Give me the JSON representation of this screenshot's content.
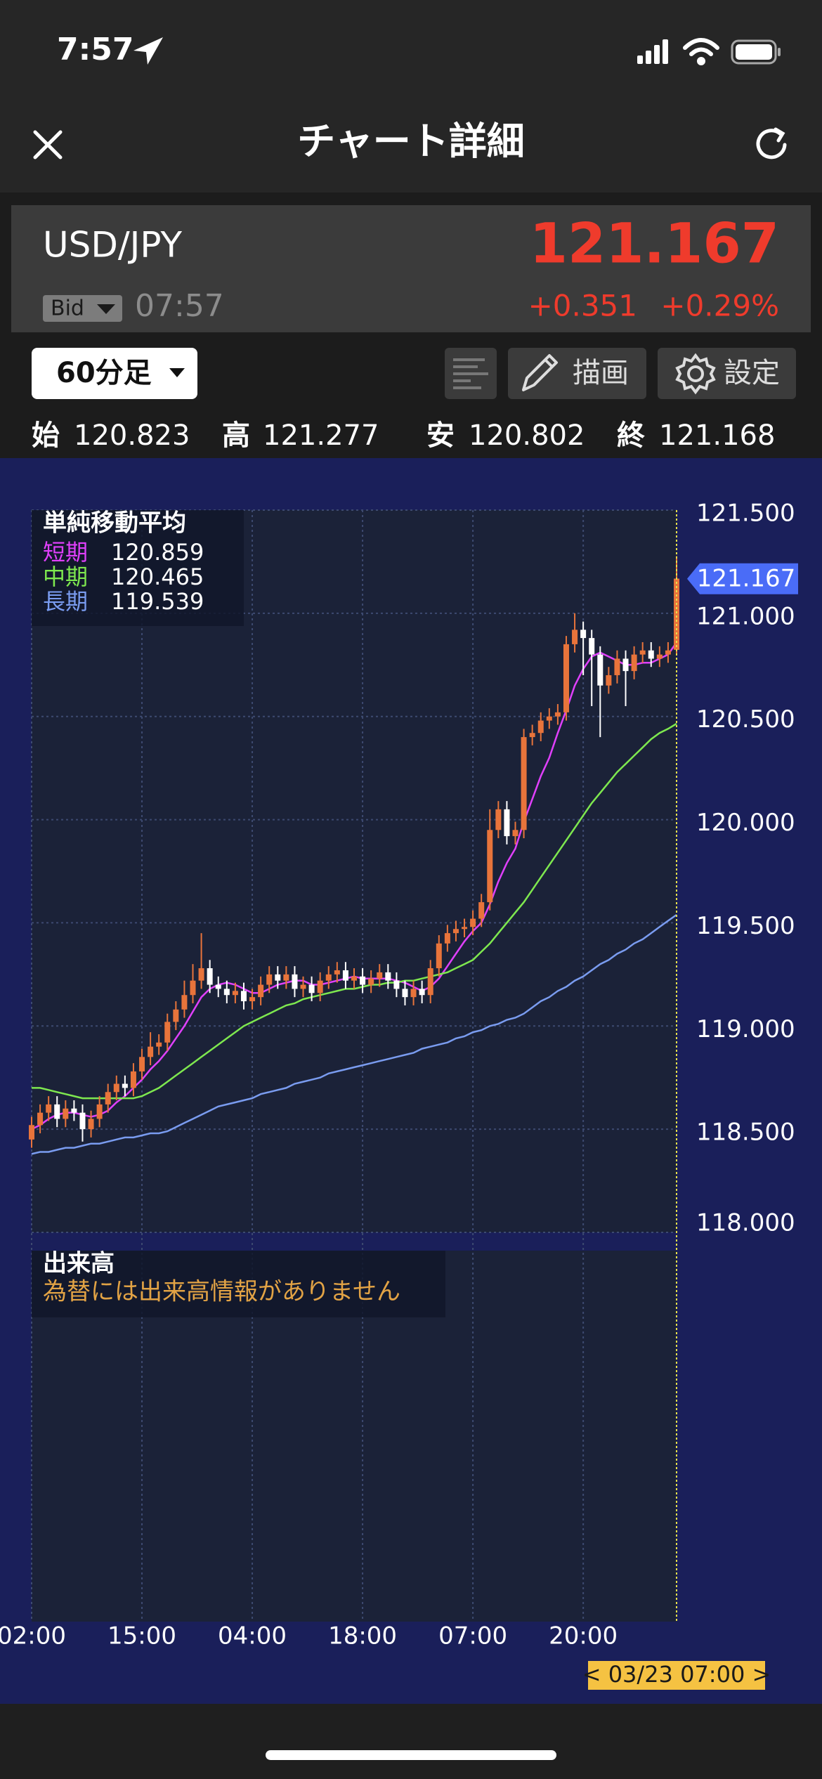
{
  "status_bar": {
    "time": "7:57"
  },
  "header": {
    "title": "チャート詳細"
  },
  "quote": {
    "pair": "USD/JPY",
    "price": "121.167",
    "side": "Bid",
    "time": "07:57",
    "change": "+0.351",
    "change_pct": "+0.29%"
  },
  "toolbar": {
    "interval": "60分足",
    "draw": "描画",
    "settings": "設定"
  },
  "ohlc": [
    {
      "label": "始",
      "value": "120.823"
    },
    {
      "label": "高",
      "value": "121.277"
    },
    {
      "label": "安",
      "value": "120.802"
    },
    {
      "label": "終",
      "value": "121.168"
    }
  ],
  "chart_data": {
    "type": "candlestick",
    "legend_title": "単純移動平均",
    "categories": [
      "02:00",
      null,
      null,
      null,
      null,
      null,
      null,
      null,
      null,
      null,
      null,
      null,
      null,
      "15:00",
      null,
      null,
      null,
      null,
      null,
      null,
      null,
      null,
      null,
      null,
      null,
      null,
      "04:00",
      null,
      null,
      null,
      null,
      null,
      null,
      null,
      null,
      null,
      null,
      null,
      null,
      "18:00",
      null,
      null,
      null,
      null,
      null,
      null,
      null,
      null,
      null,
      null,
      null,
      null,
      "07:00",
      null,
      null,
      null,
      null,
      null,
      null,
      null,
      null,
      null,
      null,
      null,
      null,
      "20:00",
      null,
      null,
      null,
      null,
      null,
      null,
      null,
      null,
      null,
      null,
      null
    ],
    "up_color": "#e8743b",
    "down_color": "#ffffff",
    "open": [
      118.45,
      118.52,
      118.58,
      118.62,
      118.55,
      118.6,
      118.58,
      118.5,
      118.55,
      118.62,
      118.68,
      118.72,
      118.7,
      118.78,
      118.85,
      118.9,
      118.92,
      119.02,
      119.08,
      119.15,
      119.22,
      119.28,
      119.2,
      119.18,
      119.15,
      119.17,
      119.12,
      119.14,
      119.2,
      119.25,
      119.22,
      119.25,
      119.18,
      119.2,
      119.16,
      119.22,
      119.25,
      119.27,
      119.22,
      119.24,
      119.2,
      119.23,
      119.26,
      119.22,
      119.18,
      119.14,
      119.18,
      119.15,
      119.28,
      119.4,
      119.45,
      119.47,
      119.48,
      119.52,
      119.6,
      119.95,
      120.05,
      119.92,
      119.95,
      120.4,
      120.42,
      120.48,
      120.5,
      120.52,
      120.85,
      120.92,
      120.88,
      120.8,
      120.65,
      120.7,
      120.78,
      120.72,
      120.8,
      120.82,
      120.78,
      120.8,
      120.823
    ],
    "high": [
      118.56,
      118.62,
      118.66,
      118.66,
      118.64,
      118.64,
      118.62,
      118.59,
      118.66,
      118.72,
      118.76,
      118.76,
      118.82,
      118.89,
      118.97,
      118.96,
      119.06,
      119.12,
      119.22,
      119.3,
      119.45,
      119.32,
      119.24,
      119.22,
      119.21,
      119.21,
      119.18,
      119.24,
      119.29,
      119.29,
      119.29,
      119.29,
      119.24,
      119.24,
      119.26,
      119.29,
      119.31,
      119.31,
      119.28,
      119.28,
      119.27,
      119.3,
      119.3,
      119.26,
      119.22,
      119.22,
      119.22,
      119.32,
      119.44,
      119.49,
      119.51,
      119.52,
      119.56,
      119.64,
      120.05,
      120.09,
      120.09,
      119.99,
      120.44,
      120.46,
      120.52,
      120.54,
      120.56,
      120.89,
      121.0,
      120.96,
      120.92,
      120.84,
      120.74,
      120.82,
      120.82,
      120.84,
      120.86,
      120.86,
      120.84,
      120.86,
      121.277
    ],
    "low": [
      118.41,
      118.48,
      118.54,
      118.51,
      118.51,
      118.54,
      118.44,
      118.46,
      118.51,
      118.58,
      118.64,
      118.66,
      118.66,
      118.74,
      118.81,
      118.86,
      118.88,
      118.98,
      119.04,
      119.11,
      119.18,
      119.16,
      119.14,
      119.11,
      119.11,
      119.08,
      119.08,
      119.1,
      119.16,
      119.18,
      119.18,
      119.14,
      119.14,
      119.12,
      119.12,
      119.18,
      119.21,
      119.18,
      119.18,
      119.16,
      119.16,
      119.19,
      119.18,
      119.14,
      119.1,
      119.1,
      119.11,
      119.11,
      119.24,
      119.36,
      119.41,
      119.43,
      119.44,
      119.48,
      119.56,
      119.91,
      119.88,
      119.88,
      119.91,
      120.36,
      120.38,
      120.44,
      120.46,
      120.48,
      120.81,
      120.7,
      120.55,
      120.4,
      120.61,
      120.66,
      120.55,
      120.68,
      120.76,
      120.74,
      120.74,
      120.76,
      120.802
    ],
    "close": [
      118.52,
      118.58,
      118.62,
      118.55,
      118.6,
      118.58,
      118.5,
      118.55,
      118.62,
      118.68,
      118.72,
      118.7,
      118.78,
      118.85,
      118.9,
      118.92,
      119.02,
      119.08,
      119.15,
      119.22,
      119.28,
      119.2,
      119.18,
      119.15,
      119.17,
      119.12,
      119.14,
      119.2,
      119.25,
      119.22,
      119.25,
      119.18,
      119.2,
      119.16,
      119.22,
      119.25,
      119.27,
      119.22,
      119.24,
      119.2,
      119.23,
      119.26,
      119.22,
      119.18,
      119.14,
      119.18,
      119.15,
      119.28,
      119.4,
      119.45,
      119.47,
      119.48,
      119.52,
      119.6,
      119.95,
      120.05,
      119.92,
      119.95,
      120.4,
      120.42,
      120.48,
      120.5,
      120.52,
      120.85,
      120.92,
      120.88,
      120.8,
      120.65,
      120.7,
      120.78,
      120.72,
      120.8,
      120.82,
      120.78,
      120.8,
      120.82,
      121.168
    ],
    "series": [
      {
        "name": "短期",
        "color": "#e040fb",
        "values": [
          118.5,
          118.52,
          118.55,
          118.57,
          118.58,
          118.58,
          118.57,
          118.56,
          118.57,
          118.59,
          118.63,
          118.66,
          118.7,
          118.74,
          118.79,
          118.83,
          118.88,
          118.94,
          119.0,
          119.07,
          119.14,
          119.18,
          119.2,
          119.21,
          119.2,
          119.18,
          119.16,
          119.16,
          119.18,
          119.2,
          119.21,
          119.22,
          119.22,
          119.2,
          119.2,
          119.21,
          119.22,
          119.23,
          119.24,
          119.23,
          119.23,
          119.23,
          119.23,
          119.22,
          119.21,
          119.19,
          119.17,
          119.19,
          119.23,
          119.29,
          119.35,
          119.41,
          119.46,
          119.5,
          119.59,
          119.7,
          119.79,
          119.86,
          119.99,
          120.1,
          120.21,
          120.3,
          120.42,
          120.53,
          120.65,
          120.73,
          120.79,
          120.81,
          120.79,
          120.77,
          120.75,
          120.75,
          120.76,
          120.76,
          120.78,
          120.8,
          120.859
        ]
      },
      {
        "name": "中期",
        "color": "#7ee84f",
        "values": [
          118.7,
          118.7,
          118.69,
          118.68,
          118.67,
          118.66,
          118.65,
          118.65,
          118.65,
          118.65,
          118.65,
          118.65,
          118.65,
          118.66,
          118.68,
          118.7,
          118.73,
          118.76,
          118.79,
          118.82,
          118.85,
          118.88,
          118.91,
          118.94,
          118.97,
          119.0,
          119.02,
          119.04,
          119.06,
          119.08,
          119.1,
          119.11,
          119.13,
          119.14,
          119.15,
          119.16,
          119.17,
          119.18,
          119.18,
          119.19,
          119.2,
          119.2,
          119.21,
          119.21,
          119.22,
          119.22,
          119.23,
          119.24,
          119.25,
          119.26,
          119.28,
          119.3,
          119.32,
          119.36,
          119.4,
          119.45,
          119.5,
          119.55,
          119.6,
          119.66,
          119.72,
          119.78,
          119.84,
          119.9,
          119.96,
          120.02,
          120.08,
          120.13,
          120.18,
          120.23,
          120.27,
          120.31,
          120.35,
          120.39,
          120.42,
          120.44,
          120.465
        ]
      },
      {
        "name": "長期",
        "color": "#7a9cf0",
        "values": [
          118.38,
          118.39,
          118.39,
          118.4,
          118.41,
          118.41,
          118.42,
          118.43,
          118.43,
          118.44,
          118.45,
          118.46,
          118.46,
          118.47,
          118.48,
          118.48,
          118.49,
          118.51,
          118.53,
          118.55,
          118.57,
          118.59,
          118.61,
          118.62,
          118.63,
          118.64,
          118.65,
          118.67,
          118.68,
          118.69,
          118.7,
          118.72,
          118.73,
          118.74,
          118.75,
          118.77,
          118.78,
          118.79,
          118.8,
          118.81,
          118.82,
          118.83,
          118.84,
          118.85,
          118.86,
          118.87,
          118.89,
          118.9,
          118.91,
          118.92,
          118.94,
          118.95,
          118.97,
          118.98,
          119.0,
          119.01,
          119.03,
          119.04,
          119.06,
          119.09,
          119.12,
          119.14,
          119.17,
          119.19,
          119.22,
          119.24,
          119.27,
          119.3,
          119.32,
          119.35,
          119.37,
          119.4,
          119.42,
          119.45,
          119.48,
          119.51,
          119.539
        ]
      }
    ],
    "ylim": [
      118.0,
      121.5
    ],
    "yticks": [
      {
        "value": 118.0,
        "label": "118.000"
      },
      {
        "value": 118.5,
        "label": "118.500"
      },
      {
        "value": 119.0,
        "label": "119.000"
      },
      {
        "value": 119.5,
        "label": "119.500"
      },
      {
        "value": 120.0,
        "label": "120.000"
      },
      {
        "value": 120.5,
        "label": "120.500"
      },
      {
        "value": 121.0,
        "label": "121.000"
      },
      {
        "value": 121.5,
        "label": "121.500"
      }
    ],
    "grid": true,
    "last_price": 121.167,
    "cursor_label": "< 03/23 07:00 >",
    "volume": {
      "title": "出来高",
      "message": "為替には出来高情報がありません"
    }
  }
}
